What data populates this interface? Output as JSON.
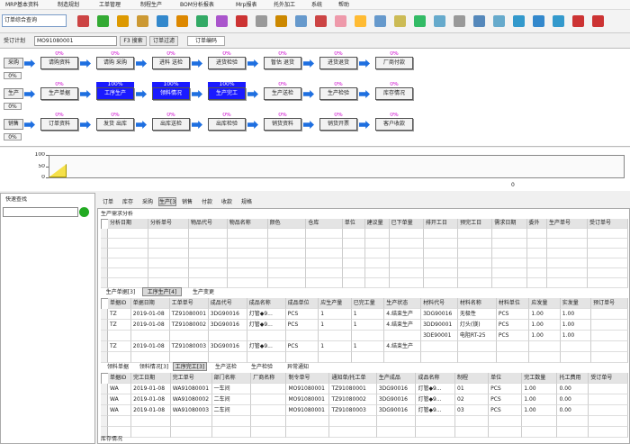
{
  "menu": [
    "MRP基本资料",
    "制造规划",
    "工单管理",
    "制程生产",
    "BOM分析报表",
    "Mrp报表",
    "托外加工",
    "系统",
    "帮助"
  ],
  "toolbar": {
    "query_select": "订单综合查询"
  },
  "search": {
    "label": "受订计划",
    "order_no": "MO91080001",
    "search_button": "F3 搜索",
    "filter_button": "订单过滤",
    "tab": "订单编码"
  },
  "flow": [
    {
      "label": "采购",
      "progress": "0%",
      "steps": [
        {
          "name": "请购资料",
          "percent": "0%",
          "highlight": false
        },
        {
          "name": "请购 采购",
          "percent": "0%",
          "highlight": false
        },
        {
          "name": "进料 送检",
          "percent": "0%",
          "highlight": false
        },
        {
          "name": "进货检验",
          "percent": "0%",
          "highlight": false
        },
        {
          "name": "暂估 退货",
          "percent": "0%",
          "highlight": false
        },
        {
          "name": "进货退货",
          "percent": "0%",
          "highlight": false
        },
        {
          "name": "厂商付款",
          "percent": "0%",
          "highlight": false
        }
      ]
    },
    {
      "label": "生产",
      "progress": "0%",
      "steps": [
        {
          "name": "生产单据",
          "percent": "0%",
          "highlight": false
        },
        {
          "name": "工序生产",
          "percent": "100%",
          "highlight": true
        },
        {
          "name": "领料情况",
          "percent": "100%",
          "highlight": true
        },
        {
          "name": "生产完工",
          "percent": "100%",
          "highlight": true
        },
        {
          "name": "生产送检",
          "percent": "0%",
          "highlight": false
        },
        {
          "name": "生产检验",
          "percent": "0%",
          "highlight": false
        },
        {
          "name": "库存情况",
          "percent": "0%",
          "highlight": false
        }
      ]
    },
    {
      "label": "销售",
      "progress": "0%",
      "steps": [
        {
          "name": "订单资料",
          "percent": "0%",
          "highlight": false
        },
        {
          "name": "发货 出库",
          "percent": "0%",
          "highlight": false
        },
        {
          "name": "出库送检",
          "percent": "0%",
          "highlight": false
        },
        {
          "name": "出库检验",
          "percent": "0%",
          "highlight": false
        },
        {
          "name": "销货资料",
          "percent": "0%",
          "highlight": false
        },
        {
          "name": "销货开票",
          "percent": "0%",
          "highlight": false
        },
        {
          "name": "客户收款",
          "percent": "0%",
          "highlight": false
        }
      ]
    }
  ],
  "mini_chart": {
    "yticks": [
      100,
      50,
      0
    ],
    "xtick": "0"
  },
  "quick_find": {
    "title": "快速查找"
  },
  "main_tabs": [
    "订单",
    "库存",
    "采购",
    "生产[3]",
    "销售",
    "付款",
    "收款",
    "规格"
  ],
  "main_active_tab": 3,
  "demand": {
    "title": "生产需求分析",
    "headers": [
      "分析日期",
      "分析单号",
      "物品代号",
      "物品名称",
      "颜色",
      "仓库",
      "单位",
      "建议量",
      "已下单量",
      "排开工日",
      "预完工日",
      "需求日期",
      "委外",
      "生产单号",
      "受订单号"
    ]
  },
  "production": {
    "tabs": [
      "生产单据[3]",
      "工序生产[4]",
      "生产变更"
    ],
    "active_tab": 1,
    "headers": [
      "单据ID",
      "单据日期",
      "工单单号",
      "成品代号",
      "成品名称",
      "成品单位",
      "应生产量",
      "已完工量",
      "生产状态",
      "材料代号",
      "材料名称",
      "材料单位",
      "应发量",
      "实发量",
      "预订单号"
    ],
    "rows": [
      [
        "TZ",
        "2019-01-08",
        "TZ91080001",
        "3DG90016",
        "灯管◆9...",
        "PCS",
        "1",
        "1",
        "4.结束生产",
        "3DG90016",
        "无极性",
        "PCS",
        "1.00",
        "1.00",
        null
      ],
      [
        "TZ",
        "2019-01-08",
        "TZ91080002",
        "3DG90016",
        "灯管◆9...",
        "PCS",
        "1",
        "1",
        "4.结束生产",
        "3DD90001",
        "灯头(镁)",
        "PCS",
        "1.00",
        "1.00",
        null
      ],
      [
        null,
        null,
        null,
        null,
        null,
        null,
        null,
        null,
        null,
        "3DE90001",
        "电阻RT-25",
        "PCS",
        "1.00",
        "1.00",
        null
      ],
      [
        "TZ",
        "2019-01-08",
        "TZ91080003",
        "3DG90016",
        "灯管◆9...",
        "PCS",
        "1",
        "1",
        "4.结束生产",
        null,
        null,
        null,
        null,
        null,
        null
      ]
    ]
  },
  "completion": {
    "tabs": [
      "领料单据",
      "领料情况[3]",
      "工序完工[3]",
      "生产送检",
      "生产检验",
      "异常通知"
    ],
    "active_tab": 2,
    "headers": [
      "单据ID",
      "完工日期",
      "完工单号",
      "部门名称",
      "厂商名称",
      "制令单号",
      "通知单/托工单",
      "生产成品",
      "成品名称",
      "制程",
      "单位",
      "完工数量",
      "托工费用",
      "受订单号"
    ],
    "rows": [
      [
        "WA",
        "2019-01-08",
        "WA91080001",
        "一车间",
        null,
        "MO91080001",
        "TZ91080001",
        "3DG90016",
        "灯管◆9...",
        "01",
        "PCS",
        "1.00",
        "0.00",
        null
      ],
      [
        "WA",
        "2019-01-08",
        "WA91080002",
        "二车间",
        null,
        "MO91080001",
        "TZ91080002",
        "3DG90016",
        "灯管◆9...",
        "02",
        "PCS",
        "1.00",
        "0.00",
        null
      ],
      [
        "WA",
        "2019-01-08",
        "WA91080003",
        "二车间",
        null,
        "MO91080001",
        "TZ91080003",
        "3DG90016",
        "灯管◆9...",
        "03",
        "PCS",
        "1.00",
        "0.00",
        null
      ]
    ]
  },
  "footer": "库存情况"
}
